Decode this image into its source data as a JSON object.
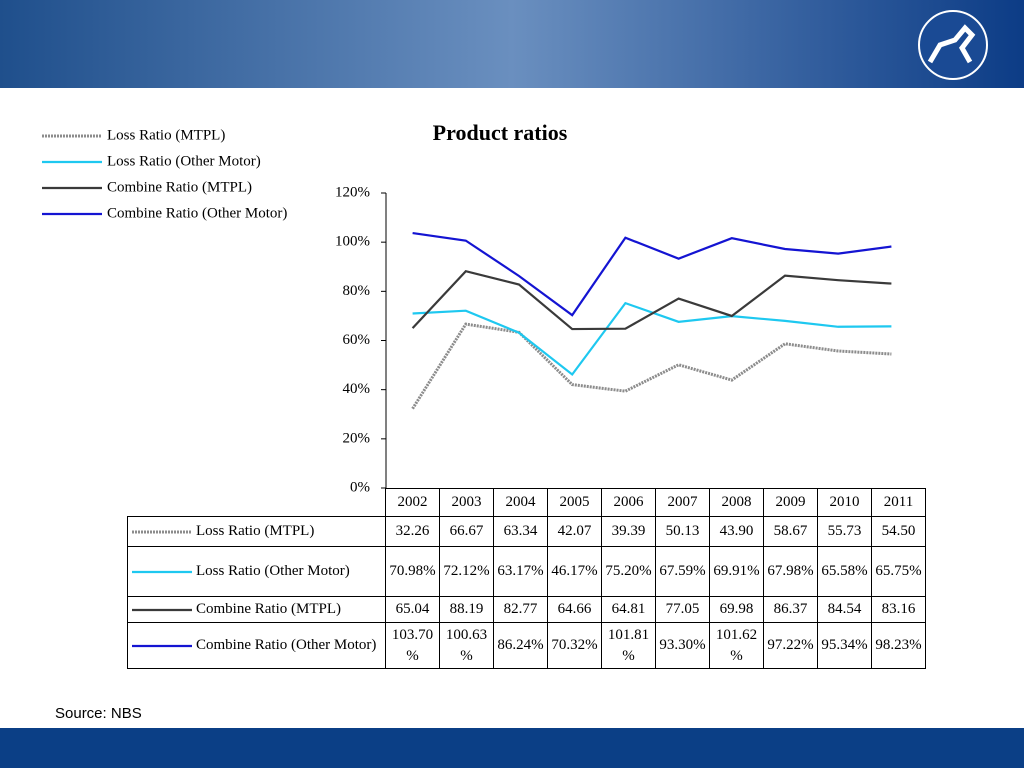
{
  "chart_data": {
    "type": "line",
    "title": "Product ratios",
    "categories": [
      "2002",
      "2003",
      "2004",
      "2005",
      "2006",
      "2007",
      "2008",
      "2009",
      "2010",
      "2011"
    ],
    "ylim": [
      0,
      120
    ],
    "yticks": [
      {
        "value": 0,
        "label": "0%"
      },
      {
        "value": 20,
        "label": "20%"
      },
      {
        "value": 40,
        "label": "40%"
      },
      {
        "value": 60,
        "label": "60%"
      },
      {
        "value": 80,
        "label": "80%"
      },
      {
        "value": 100,
        "label": "100%"
      },
      {
        "value": 120,
        "label": "120%"
      }
    ],
    "series": [
      {
        "name": "Loss Ratio (MTPL)",
        "color": "#8c8c8c",
        "values": [
          32.26,
          66.67,
          63.34,
          42.07,
          39.39,
          50.13,
          43.9,
          58.67,
          55.73,
          54.5
        ],
        "value_labels": [
          "32.26",
          "66.67",
          "63.34",
          "42.07",
          "39.39",
          "50.13",
          "43.90",
          "58.67",
          "55.73",
          "54.50"
        ]
      },
      {
        "name": "Loss Ratio (Other Motor)",
        "color": "#1ec8f0",
        "values": [
          70.98,
          72.12,
          63.17,
          46.17,
          75.2,
          67.59,
          69.91,
          67.98,
          65.58,
          65.75
        ],
        "value_labels": [
          "70.98%",
          "72.12%",
          "63.17%",
          "46.17%",
          "75.20%",
          "67.59%",
          "69.91%",
          "67.98%",
          "65.58%",
          "65.75%"
        ]
      },
      {
        "name": "Combine Ratio (MTPL)",
        "color": "#3a3a3a",
        "values": [
          65.04,
          88.19,
          82.77,
          64.66,
          64.81,
          77.05,
          69.98,
          86.37,
          84.54,
          83.16
        ],
        "value_labels": [
          "65.04",
          "88.19",
          "82.77",
          "64.66",
          "64.81",
          "77.05",
          "69.98",
          "86.37",
          "84.54",
          "83.16"
        ]
      },
      {
        "name": "Combine Ratio (Other Motor)",
        "color": "#1414d2",
        "values": [
          103.7,
          100.63,
          86.24,
          70.32,
          101.81,
          93.3,
          101.62,
          97.22,
          95.34,
          98.23
        ],
        "value_labels": [
          "103.70%",
          "100.63%",
          "86.24%",
          "70.32%",
          "101.81%",
          "93.30%",
          "101.62%",
          "97.22%",
          "95.34%",
          "98.23%"
        ]
      }
    ]
  },
  "source": "Source: NBS"
}
